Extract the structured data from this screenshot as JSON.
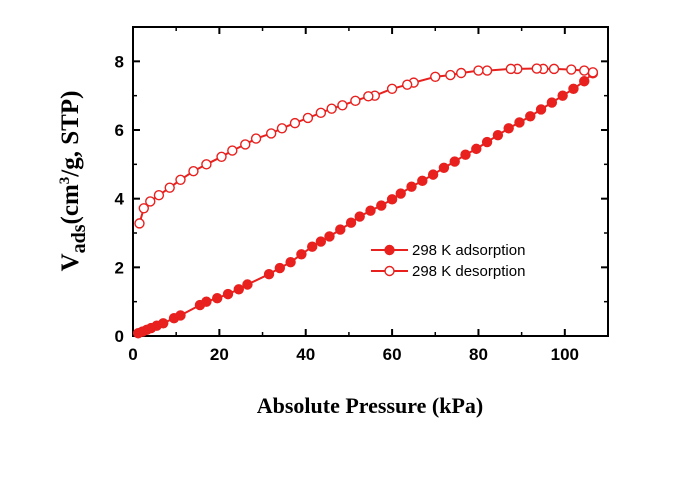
{
  "chart_data": {
    "type": "line",
    "title": "",
    "xlabel": "Absolute Pressure (kPa)",
    "ylabel": {
      "main": "V",
      "sub": "ads",
      "units_pre": "(cm",
      "units_sup": "3",
      "units_post": "/g, STP)"
    },
    "xlim": [
      0,
      110
    ],
    "ylim": [
      0,
      9
    ],
    "xticks": [
      0,
      20,
      40,
      60,
      80,
      100
    ],
    "yticks": [
      0,
      2,
      4,
      6,
      8
    ],
    "grid": false,
    "legend_position": "center-right",
    "colors": {
      "series": "#e8201e",
      "axis": "#000000"
    },
    "series": [
      {
        "name": "298 K adsorption",
        "marker": "filled-circle",
        "x": [
          1.2,
          2.2,
          3.2,
          4.2,
          5.5,
          7.0,
          9.5,
          11.0,
          15.5,
          17.0,
          19.5,
          22.0,
          24.5,
          26.5,
          31.5,
          34.0,
          36.5,
          39.0,
          41.5,
          43.5,
          45.5,
          48.0,
          50.5,
          52.5,
          55.0,
          57.5,
          60.0,
          62.0,
          64.5,
          67.0,
          69.5,
          72.0,
          74.5,
          77.0,
          79.5,
          82.0,
          84.5,
          87.0,
          89.5,
          92.0,
          94.5,
          97.0,
          99.5,
          102.0,
          104.5,
          106.5
        ],
        "y": [
          0.08,
          0.13,
          0.18,
          0.23,
          0.3,
          0.37,
          0.52,
          0.6,
          0.9,
          1.0,
          1.1,
          1.22,
          1.36,
          1.5,
          1.8,
          1.98,
          2.15,
          2.38,
          2.6,
          2.75,
          2.9,
          3.1,
          3.3,
          3.48,
          3.65,
          3.8,
          3.98,
          4.15,
          4.35,
          4.52,
          4.7,
          4.9,
          5.08,
          5.28,
          5.45,
          5.65,
          5.85,
          6.05,
          6.22,
          6.4,
          6.6,
          6.8,
          7.0,
          7.2,
          7.42,
          7.65
        ]
      },
      {
        "name": "298 K desorption",
        "marker": "open-circle",
        "x": [
          106.5,
          104.5,
          101.5,
          97.5,
          95.0,
          93.5,
          89.0,
          87.5,
          82.0,
          80.0,
          76.0,
          73.5,
          70.0,
          65.0,
          63.5,
          60.0,
          56.0,
          54.5,
          51.5,
          48.5,
          46.0,
          43.5,
          40.5,
          37.5,
          34.5,
          32.0,
          28.5,
          26.0,
          23.0,
          20.5,
          17.0,
          14.0,
          11.0,
          8.5,
          6.0,
          4.0,
          2.5,
          1.5
        ],
        "y": [
          7.68,
          7.73,
          7.76,
          7.78,
          7.78,
          7.79,
          7.78,
          7.78,
          7.73,
          7.73,
          7.66,
          7.6,
          7.55,
          7.38,
          7.32,
          7.2,
          7.0,
          6.98,
          6.85,
          6.72,
          6.62,
          6.5,
          6.35,
          6.2,
          6.05,
          5.9,
          5.75,
          5.58,
          5.4,
          5.22,
          5.0,
          4.8,
          4.55,
          4.32,
          4.1,
          3.92,
          3.72,
          3.28
        ]
      }
    ]
  }
}
